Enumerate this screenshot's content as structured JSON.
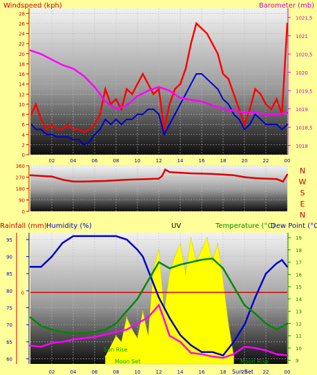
{
  "colors": {
    "background": "#ffff99",
    "windspeed": "#ff0000",
    "windspeed_avg": "#0000cc",
    "barometer": "#ff00ff",
    "wind_direction": "#dd0000",
    "rainfall": "#cc0000",
    "humidity": "#0000cc",
    "uv": "#ffff00",
    "temperature": "#008800",
    "dew_point": "#ff00ff",
    "axis_red": "#cc0000",
    "axis_magenta": "#cc00cc",
    "axis_green": "#008800",
    "axis_blue": "#0000cc"
  },
  "chart_data": [
    {
      "type": "line",
      "panel": "wind-barometer",
      "left_label": "Windspeed (kph)",
      "right_label": "Barometer (mb)",
      "x_ticks": [
        "02",
        "04",
        "06",
        "08",
        "10",
        "12",
        "14",
        "16",
        "18",
        "20",
        "22",
        "00"
      ],
      "xlim": [
        0,
        24
      ],
      "y_left_ticks": [
        "0",
        "2",
        "4",
        "6",
        "8",
        "10",
        "12",
        "14",
        "16",
        "18",
        "20",
        "22",
        "24",
        "26",
        "28"
      ],
      "y_left_lim": [
        0,
        29
      ],
      "y_right_ticks": [
        "1018",
        "1018,5",
        "1019",
        "1019,5",
        "1020",
        "1020,5",
        "1021",
        "1021,5"
      ],
      "y_right_lim": [
        1017.75,
        1021.75
      ],
      "series": [
        {
          "key": "gust",
          "axis": "left",
          "x": [
            0.1,
            0.5,
            1,
            1.5,
            2,
            2.5,
            3,
            3.5,
            4,
            4.5,
            5,
            5.5,
            6,
            6.5,
            7,
            7.5,
            8,
            8.5,
            9,
            9.5,
            10,
            10.5,
            11,
            11.5,
            12,
            12.5,
            13,
            13.5,
            14,
            14.5,
            15,
            15.5,
            16,
            16.5,
            17,
            17.5,
            18,
            18.5,
            19,
            19.5,
            20,
            20.5,
            21,
            21.5,
            22,
            22.5,
            23,
            23.5,
            24
          ],
          "y": [
            8,
            10,
            7,
            5,
            6,
            5,
            5,
            6,
            5,
            5,
            4.5,
            5,
            6,
            8,
            13,
            10,
            11,
            9,
            13,
            12,
            14,
            16,
            14,
            12,
            13,
            5,
            10,
            13,
            14,
            17,
            22,
            26,
            25,
            24,
            22,
            20,
            16,
            15,
            12,
            9,
            6,
            9,
            13,
            12,
            10,
            9,
            11,
            8,
            26
          ]
        },
        {
          "key": "average",
          "axis": "left",
          "x": [
            0.1,
            0.5,
            1,
            1.5,
            2,
            2.5,
            3,
            3.5,
            4,
            4.5,
            5,
            5.5,
            6,
            6.5,
            7,
            7.5,
            8,
            8.5,
            9,
            9.5,
            10,
            10.5,
            11,
            11.5,
            12,
            12.5,
            13,
            13.5,
            14,
            14.5,
            15,
            15.5,
            16,
            16.5,
            17,
            17.5,
            18,
            18.5,
            19,
            19.5,
            20,
            20.5,
            21,
            21.5,
            22,
            22.5,
            23,
            23.5,
            24
          ],
          "y": [
            6,
            5,
            5,
            4,
            4,
            3.5,
            3.5,
            3.5,
            3,
            3,
            2,
            2.5,
            4,
            5,
            7,
            6,
            7,
            6,
            7,
            7,
            8,
            8,
            9,
            9,
            8,
            4,
            6,
            8,
            10,
            12,
            14,
            16,
            16,
            15,
            14,
            13,
            11,
            10,
            8,
            7,
            5,
            6,
            8,
            7,
            6,
            6,
            6,
            5,
            6
          ]
        },
        {
          "key": "barometer",
          "axis": "right",
          "x": [
            0,
            1,
            2,
            3,
            4,
            5,
            6,
            7,
            8,
            9,
            10,
            11,
            12,
            13,
            14,
            15,
            16,
            17,
            18,
            19,
            20,
            21,
            22,
            23,
            24
          ],
          "y": [
            1020.6,
            1020.5,
            1020.35,
            1020.2,
            1020.1,
            1019.9,
            1019.6,
            1019.2,
            1019.0,
            1019.1,
            1019.35,
            1019.5,
            1019.6,
            1019.5,
            1019.3,
            1019.25,
            1019.2,
            1019.1,
            1019.0,
            1018.95,
            1018.9,
            1018.9,
            1018.85,
            1018.85,
            1018.9
          ]
        }
      ]
    },
    {
      "type": "line",
      "panel": "wind-direction",
      "left_ticks": [
        "360",
        "270",
        "180",
        "90",
        "0"
      ],
      "ylim": [
        0,
        360
      ],
      "compass": [
        "N",
        "W",
        "S",
        "E",
        "N"
      ],
      "series": [
        {
          "key": "direction",
          "x": [
            0,
            1,
            2,
            3,
            4,
            5,
            6,
            7,
            8,
            9,
            10,
            11,
            12,
            12.3,
            12.6,
            13,
            14,
            15,
            16,
            17,
            18,
            19,
            20,
            21,
            22,
            23,
            23.6,
            24
          ],
          "y": [
            285,
            280,
            275,
            250,
            235,
            235,
            238,
            240,
            245,
            250,
            252,
            255,
            258,
            280,
            330,
            310,
            305,
            300,
            298,
            295,
            290,
            285,
            270,
            262,
            258,
            255,
            235,
            290
          ]
        }
      ]
    },
    {
      "type": "line",
      "panel": "rain-humidity-uv-temperature",
      "title": "UV",
      "rain_label": "Rainfall (mm)",
      "humidity_label": "Humidity (%)",
      "temperature_label": "Temperature (°C)",
      "dewpoint_label": "Dew Point (°C)",
      "humidity_ticks": [
        "95",
        "90",
        "85",
        "80",
        "75",
        "70",
        "65",
        "60"
      ],
      "humidity_lim": [
        58.5,
        97
      ],
      "rain_ticks": [
        "0"
      ],
      "temperature_ticks": [
        "19",
        "18",
        "17",
        "16",
        "15",
        "14",
        "13",
        "12",
        "11",
        "10",
        "9"
      ],
      "temperature_lim": [
        8.7,
        19.4
      ],
      "x_ticks": [
        "02",
        "04",
        "06",
        "08",
        "10",
        "12",
        "14",
        "16",
        "18",
        "20",
        "22",
        "00"
      ],
      "xlim": [
        0,
        24
      ],
      "annotations": [
        "Sun Rise",
        "Moon Set",
        "Sun Set",
        "Moon Rise"
      ],
      "series": [
        {
          "key": "humidity",
          "axis": "humidity",
          "x": [
            0,
            1,
            2,
            3,
            4,
            5,
            6,
            7,
            8,
            9,
            10,
            10.5,
            11,
            11.5,
            12,
            12.5,
            13,
            14,
            15,
            16,
            17,
            18,
            19,
            20,
            21,
            22,
            23,
            23.5,
            24
          ],
          "y": [
            87,
            87,
            90,
            94,
            96,
            96,
            96,
            96,
            96,
            95,
            92,
            90,
            86,
            82,
            78,
            75,
            72,
            67,
            64,
            62,
            62,
            61,
            65,
            70,
            78,
            85,
            88,
            89,
            87
          ]
        },
        {
          "key": "temperature",
          "axis": "temperature",
          "x": [
            0,
            1,
            2,
            3,
            4,
            5,
            6,
            7,
            8,
            9,
            10,
            11,
            12,
            13,
            14,
            15,
            16,
            17,
            18,
            19,
            20,
            21,
            22,
            23,
            24
          ],
          "y": [
            12.5,
            11.8,
            11.5,
            11.3,
            11.2,
            11.2,
            11.3,
            11.5,
            12.0,
            13.0,
            14.0,
            15.5,
            17.0,
            16.5,
            16.8,
            17.0,
            17.2,
            17.3,
            16.5,
            15.0,
            13.5,
            12.8,
            12.0,
            11.5,
            12.0
          ]
        },
        {
          "key": "dew_point",
          "axis": "temperature",
          "x": [
            0,
            1,
            2,
            3,
            4,
            5,
            6,
            7,
            8,
            9,
            10,
            11,
            12,
            12.5,
            13,
            14,
            15,
            16,
            17,
            18,
            19,
            20,
            21,
            22,
            23,
            24
          ],
          "y": [
            10.2,
            10.1,
            10.4,
            10.5,
            10.7,
            10.8,
            10.9,
            11.1,
            11.3,
            11.5,
            12.0,
            12.5,
            13.5,
            12.3,
            11.0,
            10.5,
            9.6,
            9.5,
            9.3,
            9.2,
            9.5,
            10.1,
            10.0,
            9.8,
            9.5,
            9.4
          ]
        },
        {
          "key": "uv",
          "axis": "temperature",
          "x": [
            7,
            8,
            8.5,
            9,
            9.5,
            10,
            10.5,
            11,
            11.5,
            12,
            12.5,
            13,
            13.5,
            14,
            14.5,
            15,
            15.5,
            16,
            16.5,
            17,
            17.5,
            18,
            18.5,
            19
          ],
          "y": [
            9.3,
            11.0,
            10.5,
            12.5,
            11.5,
            10.8,
            13.0,
            11.0,
            16.5,
            18.0,
            13.0,
            16.0,
            17.5,
            18.5,
            16.0,
            19.0,
            17.0,
            18.0,
            19.0,
            17.0,
            18.5,
            15.5,
            12.0,
            9.3
          ]
        }
      ],
      "rain_level": 0
    }
  ]
}
